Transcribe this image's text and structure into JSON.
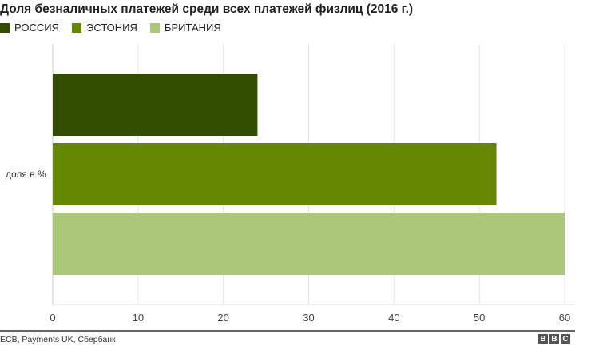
{
  "chart_data": {
    "type": "bar",
    "orientation": "horizontal",
    "title": "Доля безналичных платежей среди всех платежей физлиц (2016 г.)",
    "categories": [
      "доля в %"
    ],
    "series": [
      {
        "name": "РОССИЯ",
        "values": [
          24
        ],
        "color": "#334d00"
      },
      {
        "name": "ЭСТОНИЯ",
        "values": [
          52
        ],
        "color": "#668800"
      },
      {
        "name": "БРИТАНИЯ",
        "values": [
          60
        ],
        "color": "#abc878"
      }
    ],
    "xlim": [
      0,
      60
    ],
    "xticks": [
      "0",
      "10",
      "20",
      "30",
      "40",
      "50",
      "60"
    ],
    "grid": true,
    "legend": "top-left"
  },
  "footer": {
    "source": "ECB, Payments UK, Сбербанк",
    "logo": [
      "B",
      "B",
      "C"
    ]
  }
}
